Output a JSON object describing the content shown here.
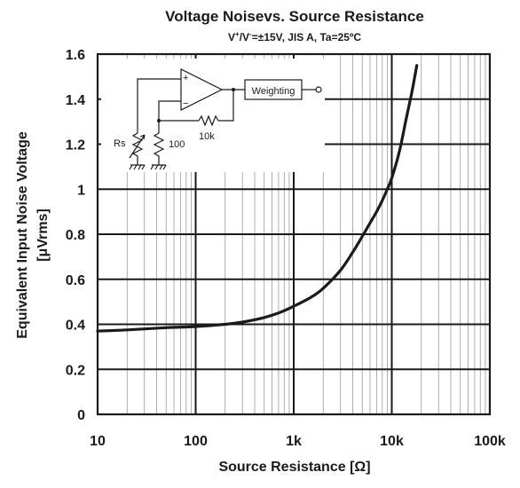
{
  "chart_data": {
    "type": "line",
    "title": "Voltage Noisevs. Source Resistance",
    "subtitle": {
      "prefix": "V",
      "plus": "+",
      "sep": "/V",
      "minus": "-",
      "rest": "=±15V, JIS A, Ta=25ºC"
    },
    "xlabel": "Source Resistance [Ω]",
    "ylabel_line1": "Equivalent Input Noise Voltage",
    "ylabel_line2": "[μVrms]",
    "x_scale": "log",
    "xlim": [
      10,
      100000
    ],
    "ylim": [
      0,
      1.6
    ],
    "x_ticks": [
      10,
      100,
      1000,
      10000,
      100000
    ],
    "x_tick_labels": [
      "10",
      "100",
      "1k",
      "10k",
      "100k"
    ],
    "y_ticks": [
      0,
      0.2,
      0.4,
      0.6,
      0.8,
      1.0,
      1.2,
      1.4,
      1.6
    ],
    "y_tick_labels": [
      "0",
      "0.2",
      "0.4",
      "0.6",
      "0.8",
      "1",
      "1.2",
      "1.4",
      "1.6"
    ],
    "grid": true,
    "series": [
      {
        "x": [
          10,
          20,
          50,
          100,
          200,
          300,
          500,
          700,
          1000,
          1500,
          2000,
          3000,
          4000,
          5000,
          6000,
          7000,
          8000,
          9000,
          10000,
          12000,
          14000,
          16000,
          18000
        ],
        "y": [
          0.37,
          0.375,
          0.385,
          0.39,
          0.4,
          0.41,
          0.43,
          0.45,
          0.48,
          0.52,
          0.56,
          0.64,
          0.72,
          0.79,
          0.85,
          0.9,
          0.95,
          1.0,
          1.05,
          1.17,
          1.31,
          1.43,
          1.55
        ]
      }
    ]
  },
  "inset": {
    "weighting_label": "Weighting",
    "rs_label": "Rs",
    "r100_label": "100",
    "r10k_label": "10k",
    "plus_sign": "+",
    "minus_sign": "−"
  },
  "colors": {
    "line": "#1a1a1a",
    "grid": "#1a1a1a",
    "minor_grid": "#9a9a9a",
    "text": "#1a1a1a"
  }
}
